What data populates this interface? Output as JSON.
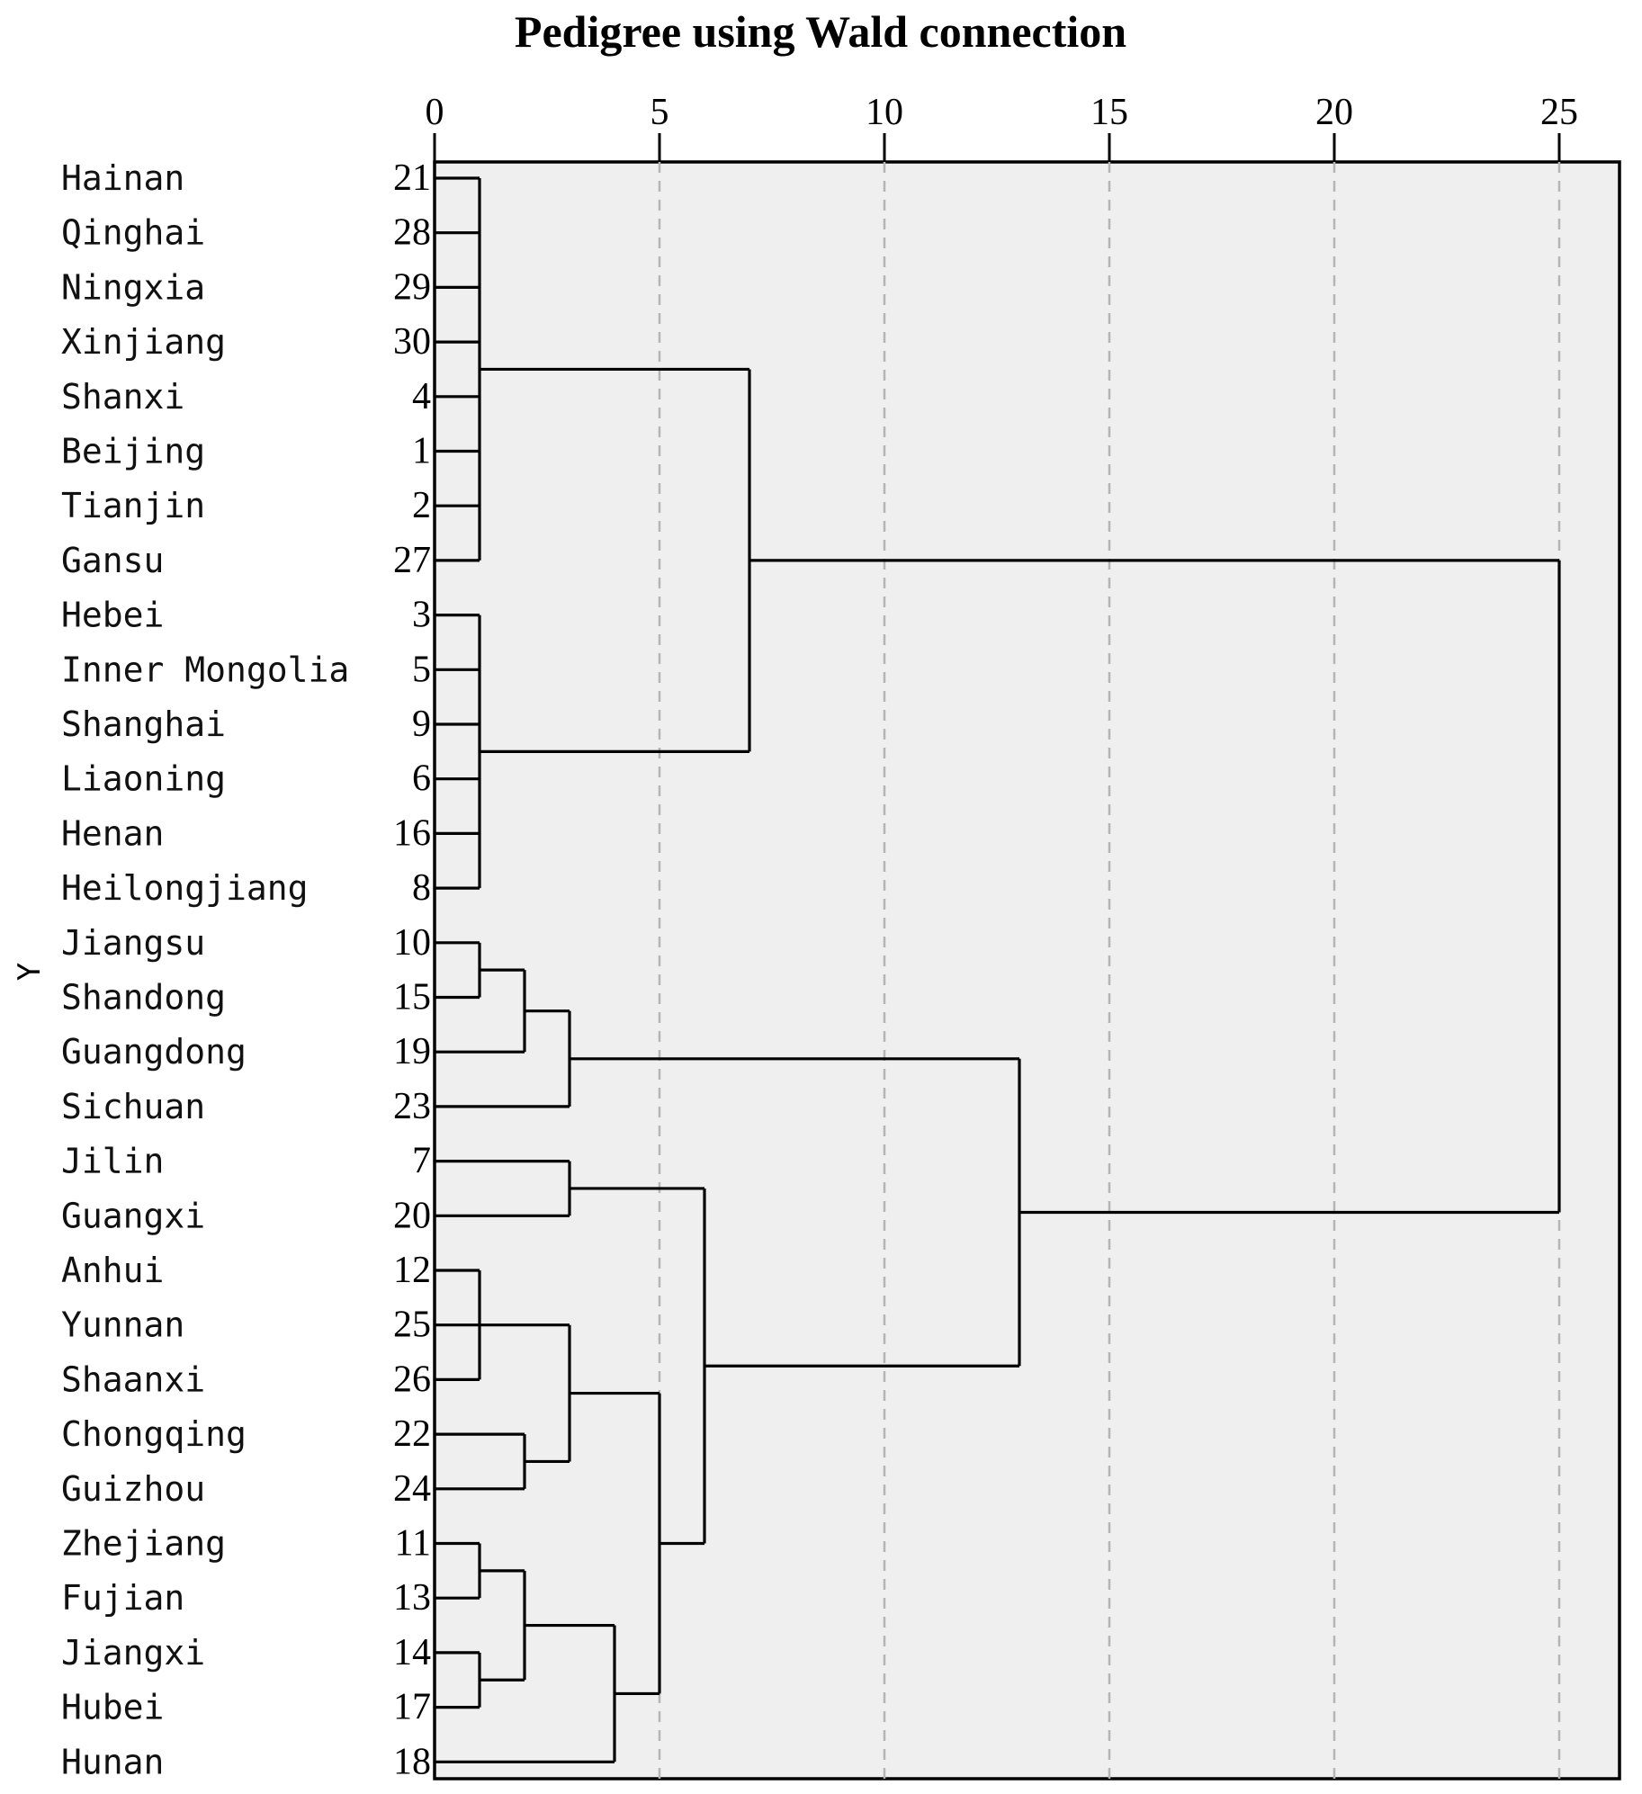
{
  "chart_data": {
    "type": "dendrogram",
    "title": "Pedigree using Wald connection",
    "xlabel": "",
    "ylabel": "Y",
    "xlim": [
      0,
      26.3
    ],
    "xticks": [
      0,
      5,
      10,
      15,
      20,
      25
    ],
    "grid": true,
    "leaves": [
      {
        "name": "Hainan",
        "id": "21"
      },
      {
        "name": "Qinghai",
        "id": "28"
      },
      {
        "name": "Ningxia",
        "id": "29"
      },
      {
        "name": "Xinjiang",
        "id": "30"
      },
      {
        "name": "Shanxi",
        "id": "4"
      },
      {
        "name": "Beijing",
        "id": "1"
      },
      {
        "name": "Tianjin",
        "id": "2"
      },
      {
        "name": "Gansu",
        "id": "27"
      },
      {
        "name": "Hebei",
        "id": "3"
      },
      {
        "name": "Inner Mongolia",
        "id": "5"
      },
      {
        "name": "Shanghai",
        "id": "9"
      },
      {
        "name": "Liaoning",
        "id": "6"
      },
      {
        "name": "Henan",
        "id": "16"
      },
      {
        "name": "Heilongjiang",
        "id": "8"
      },
      {
        "name": "Jiangsu",
        "id": "10"
      },
      {
        "name": "Shandong",
        "id": "15"
      },
      {
        "name": "Guangdong",
        "id": "19"
      },
      {
        "name": "Sichuan",
        "id": "23"
      },
      {
        "name": "Jilin",
        "id": "7"
      },
      {
        "name": "Guangxi",
        "id": "20"
      },
      {
        "name": "Anhui",
        "id": "12"
      },
      {
        "name": "Yunnan",
        "id": "25"
      },
      {
        "name": "Shaanxi",
        "id": "26"
      },
      {
        "name": "Chongqing",
        "id": "22"
      },
      {
        "name": "Guizhou",
        "id": "24"
      },
      {
        "name": "Zhejiang",
        "id": "11"
      },
      {
        "name": "Fujian",
        "id": "13"
      },
      {
        "name": "Jiangxi",
        "id": "14"
      },
      {
        "name": "Hubei",
        "id": "17"
      },
      {
        "name": "Hunan",
        "id": "18"
      }
    ],
    "merges": [
      {
        "id": "A",
        "distance": 1,
        "children": [
          0,
          1,
          2,
          3,
          4,
          5,
          6,
          7
        ]
      },
      {
        "id": "B",
        "distance": 1,
        "children": [
          8,
          9,
          10,
          11,
          12,
          13
        ]
      },
      {
        "id": "C",
        "distance": 7,
        "children": [
          "A",
          "B"
        ]
      },
      {
        "id": "D",
        "distance": 1,
        "children": [
          14,
          15
        ]
      },
      {
        "id": "E",
        "distance": 2,
        "children": [
          "D",
          16
        ]
      },
      {
        "id": "F",
        "distance": 3,
        "children": [
          "E",
          17
        ]
      },
      {
        "id": "G",
        "distance": 3,
        "children": [
          18,
          19
        ]
      },
      {
        "id": "H",
        "distance": 1,
        "children": [
          20,
          21,
          22
        ]
      },
      {
        "id": "I",
        "distance": 2,
        "children": [
          23,
          24
        ]
      },
      {
        "id": "J",
        "distance": 3,
        "children": [
          "H",
          "I"
        ]
      },
      {
        "id": "K",
        "distance": 1,
        "children": [
          25,
          26
        ]
      },
      {
        "id": "L",
        "distance": 1,
        "children": [
          27,
          28
        ]
      },
      {
        "id": "M",
        "distance": 2,
        "children": [
          "K",
          "L"
        ]
      },
      {
        "id": "N",
        "distance": 4,
        "children": [
          "M",
          29
        ]
      },
      {
        "id": "O",
        "distance": 5,
        "children": [
          "J",
          "N"
        ]
      },
      {
        "id": "P",
        "distance": 6,
        "children": [
          "G",
          "O"
        ]
      },
      {
        "id": "Q",
        "distance": 13,
        "children": [
          "F",
          "P"
        ]
      },
      {
        "id": "R",
        "distance": 25,
        "children": [
          "C",
          "Q"
        ]
      }
    ]
  }
}
